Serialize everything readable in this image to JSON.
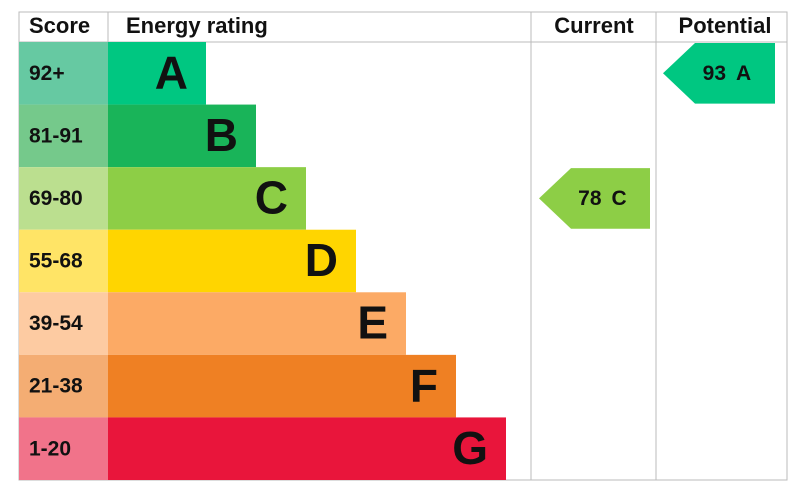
{
  "header": {
    "score": "Score",
    "rating": "Energy rating",
    "current": "Current",
    "potential": "Potential"
  },
  "bands": [
    {
      "range": "92+",
      "letter": "A",
      "color": "#00c781",
      "light": "#66c9a2"
    },
    {
      "range": "81-91",
      "letter": "B",
      "color": "#19b459",
      "light": "#75c98b"
    },
    {
      "range": "69-80",
      "letter": "C",
      "color": "#8dce46",
      "light": "#bbdf8f"
    },
    {
      "range": "55-68",
      "letter": "D",
      "color": "#ffd500",
      "light": "#ffe466"
    },
    {
      "range": "39-54",
      "letter": "E",
      "color": "#fcaa65",
      "light": "#fdcba2"
    },
    {
      "range": "21-38",
      "letter": "F",
      "color": "#ef8023",
      "light": "#f4ad73"
    },
    {
      "range": "1-20",
      "letter": "G",
      "color": "#e9153b",
      "light": "#f1738a"
    }
  ],
  "current": {
    "value": 78,
    "band": "C"
  },
  "potential": {
    "value": 93,
    "band": "A"
  }
}
